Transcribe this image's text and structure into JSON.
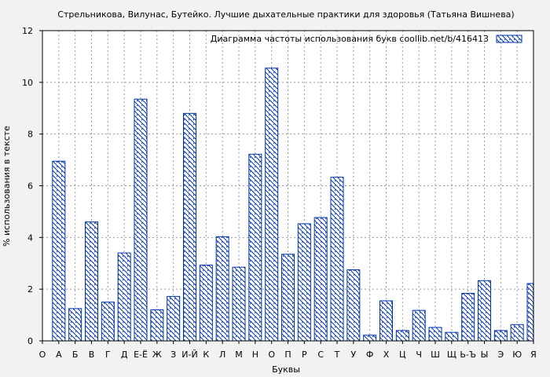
{
  "chart_data": {
    "type": "bar",
    "title": "Стрельникова, Вилунас, Бутейко. Лучшие дыхательные практики для здоровья (Татьяна Вишнева)",
    "xlabel": "Буквы",
    "ylabel": "% использования в тексте",
    "legend": {
      "label": "Диаграмма частоты использования букв  coollib.net/b/416413",
      "position": "top-right"
    },
    "ylim": [
      0,
      12
    ],
    "yticks": [
      0,
      2,
      4,
      6,
      8,
      10,
      12
    ],
    "grid": true,
    "categories": [
      "О",
      "А",
      "Б",
      "В",
      "Г",
      "Д",
      "Е-Ё",
      "Ж",
      "З",
      "И-Й",
      "К",
      "Л",
      "М",
      "Н",
      "О",
      "П",
      "Р",
      "С",
      "Т",
      "У",
      "Ф",
      "Х",
      "Ц",
      "Ч",
      "Ш",
      "Щ",
      "Ь-Ъ",
      "Ы",
      "Э",
      "Ю",
      "Я"
    ],
    "values": [
      null,
      6.95,
      1.25,
      4.6,
      1.5,
      3.4,
      9.35,
      1.2,
      1.72,
      8.8,
      2.93,
      4.03,
      2.85,
      7.22,
      10.55,
      3.35,
      4.53,
      4.77,
      6.33,
      2.75,
      0.22,
      1.55,
      0.4,
      1.18,
      0.52,
      0.33,
      1.84,
      2.33,
      0.4,
      0.63,
      2.22
    ],
    "colors": {
      "bar_stroke": "#0033aa",
      "hatch": "#0033aa",
      "bar_fill": "#ffffff",
      "grid": "#999999",
      "background": "#f2f2f2"
    }
  }
}
